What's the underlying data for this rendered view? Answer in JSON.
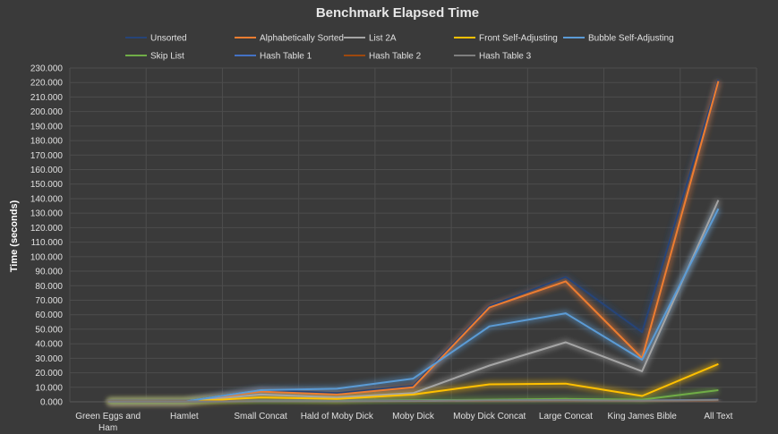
{
  "chart_data": {
    "type": "line",
    "title": "Benchmark Elapsed Time",
    "xlabel": "",
    "ylabel": "Time (seconds)",
    "ylim": [
      0,
      230
    ],
    "ytick_step": 10,
    "ytick_labels": [
      "0.000",
      "10.000",
      "20.000",
      "30.000",
      "40.000",
      "50.000",
      "60.000",
      "70.000",
      "80.000",
      "90.000",
      "100.000",
      "110.000",
      "120.000",
      "130.000",
      "140.000",
      "150.000",
      "160.000",
      "170.000",
      "180.000",
      "190.000",
      "200.000",
      "210.000",
      "220.000",
      "230.000"
    ],
    "grid": true,
    "legend_position": "top",
    "categories": [
      [
        "Green Eggs and",
        "Ham"
      ],
      [
        "Hamlet"
      ],
      [
        "Small Concat"
      ],
      [
        "Hald of Moby Dick"
      ],
      [
        "Moby Dick"
      ],
      [
        "Moby Dick Concat"
      ],
      [
        "Large Concat"
      ],
      [
        "King James Bible"
      ],
      [
        "All Text"
      ]
    ],
    "series": [
      {
        "name": "Unsorted",
        "color": "#264478",
        "values": [
          0.0,
          0.2,
          8.0,
          6.0,
          11.0,
          66.0,
          86.0,
          48.0,
          222.0
        ]
      },
      {
        "name": "Alphabetically Sorted",
        "color": "#ed7d31",
        "values": [
          0.0,
          0.2,
          7.0,
          5.0,
          10.0,
          65.0,
          83.0,
          30.0,
          221.0
        ]
      },
      {
        "name": "List 2A",
        "color": "#a5a5a5",
        "values": [
          0.0,
          0.1,
          5.0,
          3.0,
          6.0,
          25.0,
          41.0,
          21.0,
          139.0
        ]
      },
      {
        "name": "Front Self-Adjusting",
        "color": "#ffc000",
        "values": [
          0.0,
          0.1,
          3.0,
          2.0,
          5.0,
          12.0,
          12.5,
          4.0,
          26.0
        ]
      },
      {
        "name": "Bubble Self-Adjusting",
        "color": "#5b9bd5",
        "values": [
          0.0,
          0.2,
          8.0,
          9.0,
          16.0,
          52.0,
          61.0,
          29.0,
          133.0
        ]
      },
      {
        "name": "Skip List",
        "color": "#70ad47",
        "values": [
          0.0,
          0.1,
          0.5,
          0.5,
          1.0,
          1.5,
          2.0,
          1.5,
          8.0
        ]
      },
      {
        "name": "Hash Table 1",
        "color": "#4472c4",
        "values": [
          0.0,
          0.1,
          0.4,
          0.4,
          0.6,
          1.0,
          1.2,
          0.8,
          1.5
        ]
      },
      {
        "name": "Hash Table 2",
        "color": "#9e480e",
        "values": [
          0.0,
          0.1,
          0.3,
          0.3,
          0.5,
          0.8,
          1.0,
          0.6,
          1.2
        ]
      },
      {
        "name": "Hash Table 3",
        "color": "#7f7f7f",
        "values": [
          0.0,
          0.1,
          0.3,
          0.3,
          0.5,
          0.9,
          1.1,
          0.7,
          1.3
        ]
      }
    ]
  }
}
